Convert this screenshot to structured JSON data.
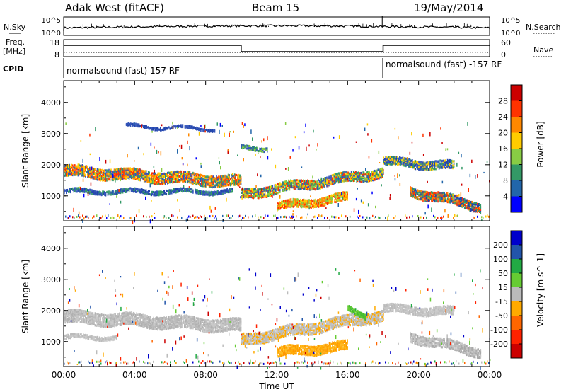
{
  "header": {
    "title": "Adak West (fitACF)",
    "beam": "Beam 15",
    "date": "19/May/2014"
  },
  "nsky_panel": {
    "left_label": "N.Sky",
    "left_ticks": [
      "10^5",
      "10^0"
    ],
    "right_label": "N.Search",
    "right_ticks": [
      "10^5",
      "10^0"
    ]
  },
  "freq_panel": {
    "left_label": "Freq.",
    "left_unit": "[MHz]",
    "left_ticks": [
      "18",
      "8"
    ],
    "right_label": "Nave",
    "right_ticks": [
      "60",
      "0"
    ],
    "cpid_label": "CPID",
    "cpid_segments": [
      {
        "text": "normalsound (fast) 157 RF",
        "start_hour": 0,
        "end_hour": 18
      },
      {
        "text": "normalsound (fast) -157 RF",
        "start_hour": 18,
        "end_hour": 24
      }
    ],
    "freq_profile": [
      {
        "start_hour": 0,
        "end_hour": 10,
        "level": "high"
      },
      {
        "start_hour": 10,
        "end_hour": 18,
        "level": "low"
      },
      {
        "start_hour": 18,
        "end_hour": 24,
        "level": "high"
      }
    ]
  },
  "chart_data": [
    {
      "type": "heatmap",
      "quantity": "Power",
      "ylabel": "Slant Range [km]",
      "yticks": [
        1000,
        2000,
        3000,
        4000
      ],
      "ylim": [
        200,
        4700
      ],
      "xlim_hours": [
        0,
        24
      ],
      "colorbar": {
        "label": "Power [dB]",
        "ticks": [
          "28",
          "24",
          "20",
          "16",
          "12",
          "8",
          "4"
        ],
        "colors": [
          "#cc0000",
          "#ff3300",
          "#ff8800",
          "#ffcc00",
          "#88cc44",
          "#339966",
          "#2266aa",
          "#0000ff"
        ]
      },
      "bands": [
        {
          "from_hour": 0.0,
          "to_hour": 10.0,
          "range_start_km": 1850,
          "range_end_km": 1500,
          "thickness_km": 350,
          "color_mix": [
            "#3355bb",
            "#339966",
            "#ffcc00",
            "#ff8800",
            "#ff3300"
          ]
        },
        {
          "from_hour": 10.0,
          "to_hour": 18.0,
          "range_start_km": 1100,
          "range_end_km": 1800,
          "thickness_km": 300,
          "color_mix": [
            "#3355bb",
            "#339966",
            "#88cc44",
            "#ffcc00",
            "#ff3300"
          ]
        },
        {
          "from_hour": 12.0,
          "to_hour": 16.0,
          "range_start_km": 700,
          "range_end_km": 1000,
          "thickness_km": 250,
          "color_mix": [
            "#ff3300",
            "#ff8800",
            "#ffcc00",
            "#88cc44"
          ]
        },
        {
          "from_hour": 0.0,
          "to_hour": 9.5,
          "range_start_km": 1200,
          "range_end_km": 1200,
          "thickness_km": 150,
          "color_mix": [
            "#2244aa",
            "#3355bb",
            "#339966"
          ]
        },
        {
          "from_hour": 18.0,
          "to_hour": 22.0,
          "range_start_km": 2150,
          "range_end_km": 2000,
          "thickness_km": 250,
          "color_mix": [
            "#2244aa",
            "#3355bb",
            "#339966",
            "#ffcc00"
          ]
        },
        {
          "from_hour": 19.5,
          "to_hour": 23.5,
          "range_start_km": 1200,
          "range_end_km": 700,
          "thickness_km": 300,
          "color_mix": [
            "#2244aa",
            "#339966",
            "#ff8800",
            "#ff3300"
          ]
        },
        {
          "from_hour": 3.5,
          "to_hour": 8.5,
          "range_start_km": 3300,
          "range_end_km": 3200,
          "thickness_km": 100,
          "color_mix": [
            "#2244aa",
            "#3355bb"
          ]
        },
        {
          "from_hour": 10.0,
          "to_hour": 11.5,
          "range_start_km": 2600,
          "range_end_km": 2600,
          "thickness_km": 150,
          "color_mix": [
            "#3355bb",
            "#339966",
            "#88cc44"
          ]
        }
      ]
    },
    {
      "type": "heatmap",
      "quantity": "Velocity",
      "ylabel": "Slant Range [km]",
      "yticks": [
        1000,
        2000,
        3000,
        4000
      ],
      "ylim": [
        200,
        4700
      ],
      "xlim_hours": [
        0,
        24
      ],
      "xticks": [
        "00:00",
        "04:00",
        "08:00",
        "12:00",
        "16:00",
        "20:00",
        "00:00"
      ],
      "xlabel": "Time UT",
      "colorbar": {
        "label": "Velocity [m s^-1]",
        "ticks": [
          "200",
          "100",
          "50",
          "15",
          "-15",
          "-50",
          "-100",
          "-200"
        ],
        "colors": [
          "#0000cc",
          "#2255aa",
          "#22aa44",
          "#66cc33",
          "#bbbbbb",
          "#ffaa00",
          "#ff6600",
          "#ff2200",
          "#cc0000"
        ]
      },
      "bands": [
        {
          "from_hour": 0.0,
          "to_hour": 10.0,
          "range_start_km": 1850,
          "range_end_km": 1550,
          "thickness_km": 400,
          "color_mix": [
            "#bbbbbb",
            "#c8c8c8",
            "#b0b0b0"
          ]
        },
        {
          "from_hour": 10.0,
          "to_hour": 18.0,
          "range_start_km": 1100,
          "range_end_km": 1900,
          "thickness_km": 350,
          "color_mix": [
            "#bbbbbb",
            "#ffaa00",
            "#c8c8c8"
          ]
        },
        {
          "from_hour": 12.0,
          "to_hour": 16.0,
          "range_start_km": 700,
          "range_end_km": 900,
          "thickness_km": 300,
          "color_mix": [
            "#ffaa00",
            "#ffbb22",
            "#ff9900"
          ]
        },
        {
          "from_hour": 16.0,
          "to_hour": 17.0,
          "range_start_km": 2100,
          "range_end_km": 1900,
          "thickness_km": 200,
          "color_mix": [
            "#66cc33",
            "#44bb33"
          ]
        },
        {
          "from_hour": 18.0,
          "to_hour": 22.0,
          "range_start_km": 2100,
          "range_end_km": 2000,
          "thickness_km": 250,
          "color_mix": [
            "#bbbbbb",
            "#c8c8c8"
          ]
        },
        {
          "from_hour": 19.5,
          "to_hour": 23.5,
          "range_start_km": 1200,
          "range_end_km": 700,
          "thickness_km": 300,
          "color_mix": [
            "#bbbbbb",
            "#c8c8c8",
            "#a8a8a8"
          ]
        },
        {
          "from_hour": 0.0,
          "to_hour": 3.0,
          "range_start_km": 1200,
          "range_end_km": 1200,
          "thickness_km": 150,
          "color_mix": [
            "#bbbbbb",
            "#c8c8c8"
          ]
        }
      ]
    }
  ]
}
